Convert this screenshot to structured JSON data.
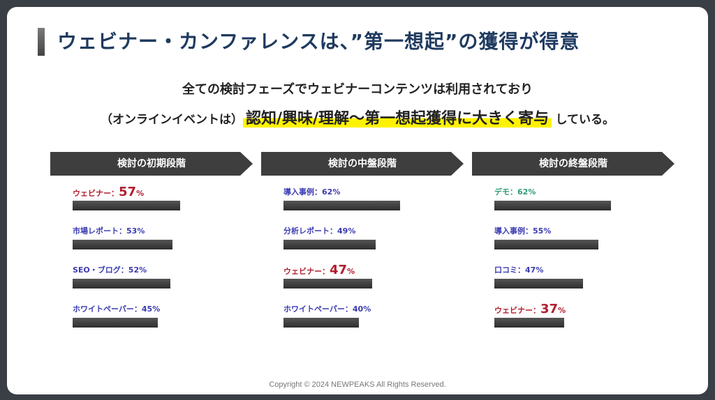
{
  "title": "ウェビナー・カンファレンスは、”第一想起”の獲得が得意",
  "subtitle_line1": "全ての検討フェーズでウェビナーコンテンツは利用されており",
  "subtitle_line2_prefix": "（オンラインイベントは）",
  "subtitle_line2_highlight": "認知/興味/理解〜第一想起獲得に大きく寄与",
  "subtitle_line2_suffix": "している。",
  "footer": "Copyright © 2024 NEWPEAKS All Rights Reserved.",
  "colors": {
    "webinar": "#b01e2e",
    "default": "#3b3bb0",
    "demo": "#2f9a7a",
    "header_bg": "#3e3e3e",
    "highlight": "#fff200",
    "title": "#1f3a5f"
  },
  "chart_data": [
    {
      "type": "bar",
      "title": "検討の初期段階",
      "unit": "%",
      "categories": [
        "ウェビナー",
        "市場レポート",
        "SEO・ブログ",
        "ホワイトペーパー"
      ],
      "values": [
        57,
        53,
        52,
        45
      ],
      "emphasized": [
        true,
        false,
        false,
        false
      ]
    },
    {
      "type": "bar",
      "title": "検討の中盤段階",
      "unit": "%",
      "categories": [
        "導入事例",
        "分析レポート",
        "ウェビナー",
        "ホワイトペーパー"
      ],
      "values": [
        62,
        49,
        47,
        40
      ],
      "emphasized": [
        false,
        false,
        true,
        false
      ]
    },
    {
      "type": "bar",
      "title": "検討の終盤段階",
      "unit": "%",
      "categories": [
        "デモ",
        "導入事例",
        "口コミ",
        "ウェビナー"
      ],
      "values": [
        62,
        55,
        47,
        37
      ],
      "emphasized": [
        false,
        false,
        false,
        true
      ]
    }
  ]
}
